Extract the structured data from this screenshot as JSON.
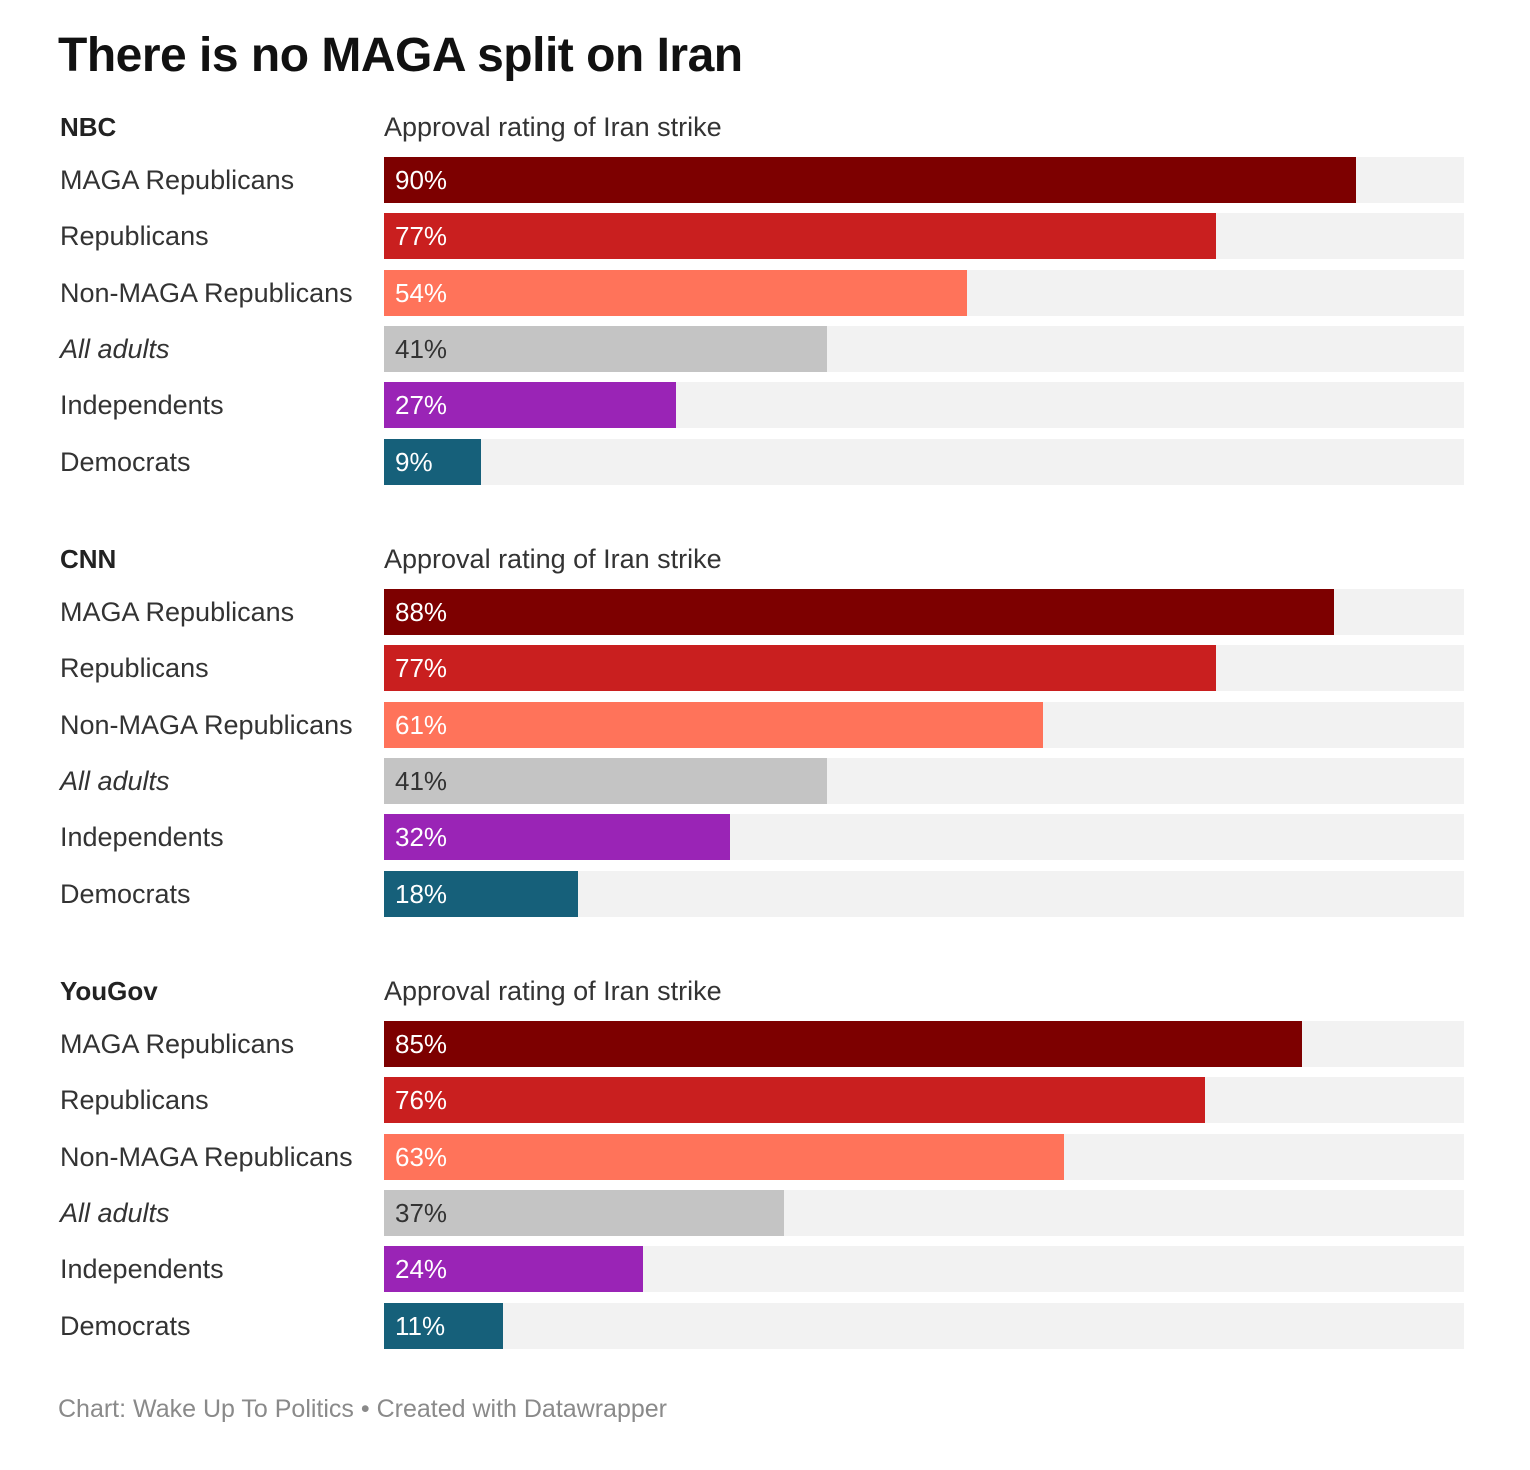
{
  "chart_data": {
    "type": "bar",
    "title": "There is no MAGA split on Iran",
    "xlim": [
      0,
      100
    ],
    "unit": "%",
    "colors": {
      "MAGA Republicans": "#7d0000",
      "Republicans": "#c91f1f",
      "Non-MAGA Republicans": "#ff735a",
      "All adults": "#c4c4c4",
      "Independents": "#9a24b6",
      "Democrats": "#16607a",
      "track": "#f2f2f2"
    },
    "panels": [
      {
        "source": "NBC",
        "subtitle": "Approval rating of Iran strike",
        "categories": [
          "MAGA Republicans",
          "Republicans",
          "Non-MAGA Republicans",
          "All adults",
          "Independents",
          "Democrats"
        ],
        "values": [
          90,
          77,
          54,
          41,
          27,
          9
        ],
        "labels": [
          "90%",
          "77%",
          "54%",
          "41%",
          "27%",
          "9%"
        ]
      },
      {
        "source": "CNN",
        "subtitle": "Approval rating of Iran strike",
        "categories": [
          "MAGA Republicans",
          "Republicans",
          "Non-MAGA Republicans",
          "All adults",
          "Independents",
          "Democrats"
        ],
        "values": [
          88,
          77,
          61,
          41,
          32,
          18
        ],
        "labels": [
          "88%",
          "77%",
          "61%",
          "41%",
          "32%",
          "18%"
        ]
      },
      {
        "source": "YouGov",
        "subtitle": "Approval rating of Iran strike",
        "categories": [
          "MAGA Republicans",
          "Republicans",
          "Non-MAGA Republicans",
          "All adults",
          "Independents",
          "Democrats"
        ],
        "values": [
          85,
          76,
          63,
          37,
          24,
          11
        ],
        "labels": [
          "85%",
          "76%",
          "63%",
          "37%",
          "24%",
          "11%"
        ]
      }
    ]
  },
  "footer": "Chart: Wake Up To Politics • Created with Datawrapper"
}
